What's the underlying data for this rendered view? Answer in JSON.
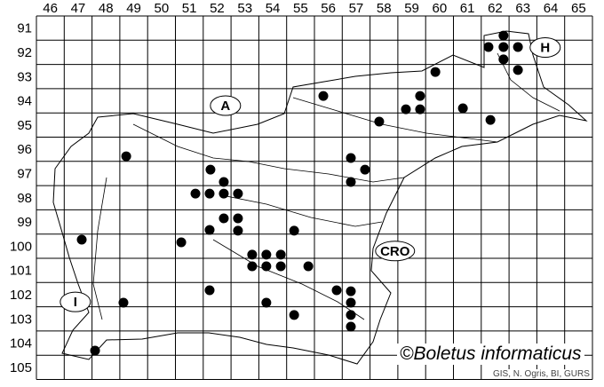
{
  "map": {
    "columns": [
      "46",
      "47",
      "48",
      "49",
      "50",
      "51",
      "52",
      "53",
      "54",
      "55",
      "56",
      "57",
      "58",
      "59",
      "60",
      "61",
      "62",
      "63",
      "64",
      "65"
    ],
    "rows": [
      "91",
      "92",
      "93",
      "94",
      "95",
      "96",
      "97",
      "98",
      "99",
      "100",
      "101",
      "102",
      "103",
      "104",
      "105"
    ],
    "country_labels": [
      {
        "text": "A",
        "col": 52.8,
        "row": 94.7
      },
      {
        "text": "H",
        "col": 64.3,
        "row": 92.3
      },
      {
        "text": "CRO",
        "col": 58.9,
        "row": 100.7
      },
      {
        "text": "I",
        "col": 47.4,
        "row": 102.8
      }
    ],
    "dot_color": "#000000",
    "records": [
      [
        62.8,
        91.81
      ],
      [
        62.26,
        92.28
      ],
      [
        62.8,
        92.28
      ],
      [
        63.32,
        92.28
      ],
      [
        62.8,
        92.79
      ],
      [
        63.32,
        93.23
      ],
      [
        60.35,
        93.31
      ],
      [
        56.32,
        94.3
      ],
      [
        59.8,
        94.3
      ],
      [
        59.29,
        94.85
      ],
      [
        59.8,
        94.85
      ],
      [
        61.34,
        94.81
      ],
      [
        58.33,
        95.36
      ],
      [
        62.33,
        95.29
      ],
      [
        49.23,
        96.79
      ],
      [
        57.31,
        96.86
      ],
      [
        52.26,
        97.34
      ],
      [
        57.82,
        97.34
      ],
      [
        52.74,
        97.85
      ],
      [
        57.31,
        97.85
      ],
      [
        51.72,
        98.33
      ],
      [
        52.23,
        98.33
      ],
      [
        52.74,
        98.33
      ],
      [
        53.25,
        98.33
      ],
      [
        52.74,
        99.35
      ],
      [
        53.25,
        99.35
      ],
      [
        52.23,
        99.83
      ],
      [
        53.25,
        99.86
      ],
      [
        55.27,
        99.86
      ],
      [
        47.63,
        100.23
      ],
      [
        51.21,
        100.34
      ],
      [
        53.76,
        100.85
      ],
      [
        54.27,
        100.85
      ],
      [
        54.79,
        100.85
      ],
      [
        53.76,
        101.33
      ],
      [
        54.27,
        101.33
      ],
      [
        54.79,
        101.33
      ],
      [
        55.78,
        101.33
      ],
      [
        52.23,
        102.32
      ],
      [
        56.8,
        102.32
      ],
      [
        57.31,
        102.36
      ],
      [
        49.13,
        102.83
      ],
      [
        54.27,
        102.83
      ],
      [
        57.31,
        102.83
      ],
      [
        57.31,
        103.34
      ],
      [
        55.27,
        103.34
      ],
      [
        57.31,
        103.82
      ],
      [
        48.11,
        104.81
      ]
    ]
  },
  "copyright": "©Boletus informaticus",
  "credit": "GIS, N. Ogris, BI, GURS"
}
